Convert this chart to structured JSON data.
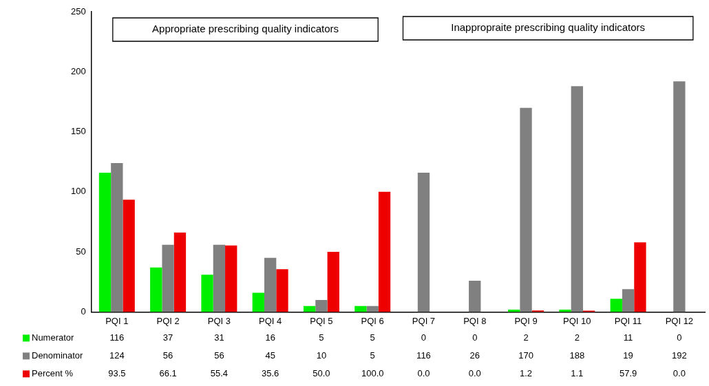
{
  "chart_data": {
    "type": "bar",
    "categories": [
      "PQI 1",
      "PQI 2",
      "PQI 3",
      "PQI 4",
      "PQI 5",
      "PQI 6",
      "PQI 7",
      "PQI 8",
      "PQI 9",
      "PQI 10",
      "PQI 11",
      "PQI 12"
    ],
    "series": [
      {
        "name": "Numerator",
        "color": "#00ee00",
        "values": [
          116,
          37,
          31,
          16,
          5,
          5,
          0,
          0,
          2,
          2,
          11,
          0
        ],
        "value_labels": [
          "116",
          "37",
          "31",
          "16",
          "5",
          "5",
          "0",
          "0",
          "2",
          "2",
          "11",
          "0"
        ]
      },
      {
        "name": "Denominator",
        "color": "#808080",
        "values": [
          124,
          56,
          56,
          45,
          10,
          5,
          116,
          26,
          170,
          188,
          19,
          192
        ],
        "value_labels": [
          "124",
          "56",
          "56",
          "45",
          "10",
          "5",
          "116",
          "26",
          "170",
          "188",
          "19",
          "192"
        ]
      },
      {
        "name": "Percent %",
        "color": "#ee0000",
        "values": [
          93.5,
          66.1,
          55.4,
          35.6,
          50.0,
          100.0,
          0.0,
          0.0,
          1.2,
          1.1,
          57.9,
          0.0
        ],
        "value_labels": [
          "93.5",
          "66.1",
          "55.4",
          "35.6",
          "50.0",
          "100.0",
          "0.0",
          "0.0",
          "1.2",
          "1.1",
          "57.9",
          "0.0"
        ]
      }
    ],
    "ylim": [
      0,
      250
    ],
    "yticks": [
      0,
      50,
      100,
      150,
      200,
      250
    ],
    "grid": false,
    "legend": "bottom",
    "annotations": [
      "Appropriate prescribing quality indicators",
      "Inappropraite prescribing quality indicators"
    ]
  }
}
